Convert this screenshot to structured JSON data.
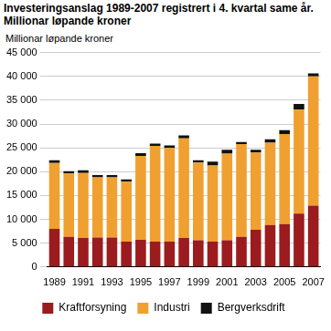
{
  "chart_data": {
    "type": "bar",
    "title": "Investeringsanslag 1989-2007 registrert i 4. kvartal same år. Millionar løpande kroner",
    "y_label": "Millionar løpande kroner",
    "categories": [
      "1989",
      null,
      "1991",
      null,
      "1993",
      null,
      "1995",
      null,
      "1997",
      null,
      "1999",
      null,
      "2001",
      null,
      "2003",
      null,
      "2005",
      null,
      "2007"
    ],
    "series": [
      {
        "name": "Kraftforsyning",
        "color": "#9b1b1e",
        "values": [
          8000,
          6300,
          6100,
          6200,
          6200,
          5300,
          5700,
          5300,
          5300,
          6100,
          5600,
          5300,
          5600,
          6300,
          7800,
          8800,
          9000,
          11200,
          12900
        ]
      },
      {
        "name": "Industri",
        "color": "#f0a030",
        "values": [
          13800,
          13300,
          13600,
          12600,
          12600,
          12600,
          17600,
          20100,
          19700,
          20900,
          16300,
          16000,
          18200,
          19500,
          16200,
          17300,
          18900,
          21800,
          27100
        ]
      },
      {
        "name": "Bergverksdrift",
        "color": "#111111",
        "values": [
          600,
          500,
          600,
          500,
          500,
          500,
          600,
          500,
          500,
          600,
          500,
          800,
          800,
          400,
          600,
          700,
          800,
          1200,
          600
        ]
      }
    ],
    "stacked": true,
    "grid": true,
    "legend": "bottom",
    "ylim": [
      0,
      45000
    ],
    "yticks": [
      0,
      {
        "value": 5000,
        "label": "5 000"
      },
      {
        "value": 10000,
        "label": "10 000"
      },
      {
        "value": 15000,
        "label": "15 000"
      },
      {
        "value": 20000,
        "label": "20 000"
      },
      {
        "value": 25000,
        "label": "25 000"
      },
      {
        "value": 30000,
        "label": "30 000"
      },
      {
        "value": 35000,
        "label": "35 000"
      },
      {
        "value": 40000,
        "label": "40 000"
      },
      {
        "value": 45000,
        "label": "45 000"
      }
    ]
  }
}
